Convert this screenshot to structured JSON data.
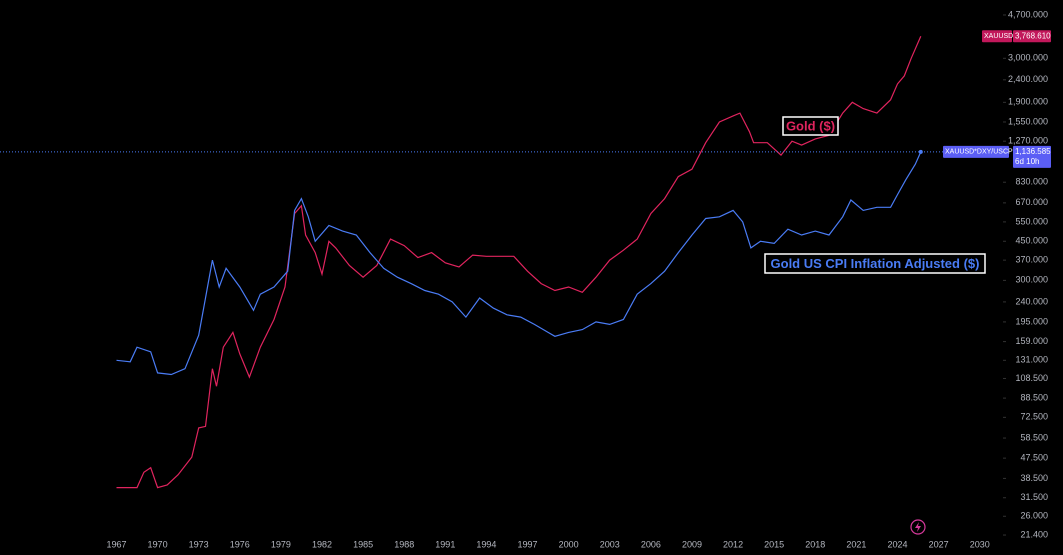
{
  "chart_data": {
    "type": "line",
    "log_scale": true,
    "background": "#000000",
    "xlim": [
      1958.5,
      2031.7
    ],
    "ylim": [
      19.3,
      5490
    ],
    "xticks": [
      1967,
      1970,
      1973,
      1976,
      1979,
      1982,
      1985,
      1988,
      1991,
      1994,
      1997,
      2000,
      2003,
      2006,
      2009,
      2012,
      2015,
      2018,
      2021,
      2024,
      2027,
      2030
    ],
    "yticks": [
      {
        "value": 4700,
        "label": "4,700.000"
      },
      {
        "value": 3000,
        "label": "3,000.000"
      },
      {
        "value": 2400,
        "label": "2,400.000"
      },
      {
        "value": 1900,
        "label": "1,900.000"
      },
      {
        "value": 1550,
        "label": "1,550.000"
      },
      {
        "value": 1270,
        "label": "1,270.000"
      },
      {
        "value": 830,
        "label": "830.000"
      },
      {
        "value": 670,
        "label": "670.000"
      },
      {
        "value": 550,
        "label": "550.000"
      },
      {
        "value": 450,
        "label": "450.000"
      },
      {
        "value": 370,
        "label": "370.000"
      },
      {
        "value": 300,
        "label": "300.000"
      },
      {
        "value": 240,
        "label": "240.000"
      },
      {
        "value": 195,
        "label": "195.000"
      },
      {
        "value": 159,
        "label": "159.000"
      },
      {
        "value": 131,
        "label": "131.000"
      },
      {
        "value": 108.5,
        "label": "108.500"
      },
      {
        "value": 88.5,
        "label": "88.500"
      },
      {
        "value": 72.5,
        "label": "72.500"
      },
      {
        "value": 58.5,
        "label": "58.500"
      },
      {
        "value": 47.5,
        "label": "47.500"
      },
      {
        "value": 38.5,
        "label": "38.500"
      },
      {
        "value": 31.5,
        "label": "31.500"
      },
      {
        "value": 26,
        "label": "26.000"
      },
      {
        "value": 21.4,
        "label": "21.400"
      }
    ],
    "series": [
      {
        "name": "XAUUSD",
        "color": "#e0245e",
        "tag_color": "#c2185b",
        "last_value_label": "3,768.610",
        "x": [
          1967.0,
          1968.5,
          1969.0,
          1969.5,
          1970.0,
          1970.7,
          1971.5,
          1972.5,
          1973.0,
          1973.5,
          1974.0,
          1974.3,
          1974.8,
          1975.5,
          1976.0,
          1976.7,
          1977.5,
          1978.5,
          1979.3,
          1980.0,
          1980.5,
          1980.8,
          1981.5,
          1982.0,
          1982.5,
          1983.0,
          1984.0,
          1985.0,
          1986.0,
          1987.0,
          1988.0,
          1989.0,
          1990.0,
          1991.0,
          1992.0,
          1993.0,
          1994.0,
          1995.0,
          1996.0,
          1997.0,
          1998.0,
          1999.0,
          2000.0,
          2001.0,
          2002.0,
          2003.0,
          2004.0,
          2005.0,
          2006.0,
          2007.0,
          2008.0,
          2009.0,
          2010.0,
          2011.0,
          2012.0,
          2012.5,
          2013.2,
          2013.5,
          2014.5,
          2015.5,
          2016.3,
          2017.0,
          2018.0,
          2019.0,
          2020.0,
          2020.7,
          2021.5,
          2022.5,
          2023.5,
          2024.0,
          2024.5,
          2025.0,
          2025.7
        ],
        "values": [
          35,
          35,
          41,
          43,
          35,
          36,
          40,
          48,
          65,
          66,
          120,
          100,
          150,
          175,
          140,
          110,
          150,
          200,
          280,
          600,
          650,
          480,
          400,
          320,
          450,
          420,
          350,
          310,
          350,
          460,
          430,
          380,
          400,
          360,
          345,
          390,
          385,
          385,
          385,
          330,
          290,
          270,
          280,
          265,
          310,
          370,
          410,
          460,
          600,
          700,
          880,
          950,
          1250,
          1550,
          1650,
          1700,
          1400,
          1250,
          1250,
          1100,
          1270,
          1220,
          1300,
          1350,
          1700,
          1900,
          1780,
          1700,
          1950,
          2300,
          2500,
          3000,
          3768.61
        ]
      },
      {
        "name": "XAUUSD*DXY/USCPI",
        "color": "#4a7cf5",
        "tag_color": "#5b5ef5",
        "last_value_label": "1,136.585",
        "countdown": "6d 10h",
        "x": [
          1967.0,
          1968.0,
          1968.5,
          1969.5,
          1970.0,
          1971.0,
          1972.0,
          1973.0,
          1973.5,
          1974.0,
          1974.5,
          1975.0,
          1976.0,
          1977.0,
          1977.5,
          1978.5,
          1979.5,
          1980.0,
          1980.5,
          1981.0,
          1981.5,
          1982.5,
          1983.5,
          1984.5,
          1985.5,
          1986.5,
          1987.5,
          1988.5,
          1989.5,
          1990.5,
          1991.5,
          1992.5,
          1993.5,
          1994.5,
          1995.5,
          1996.5,
          1997.5,
          1998.5,
          1999.0,
          2000.0,
          2001.0,
          2002.0,
          2003.0,
          2004.0,
          2005.0,
          2006.0,
          2007.0,
          2008.0,
          2009.0,
          2010.0,
          2011.0,
          2012.0,
          2012.7,
          2013.3,
          2014.0,
          2015.0,
          2016.0,
          2017.0,
          2018.0,
          2019.0,
          2020.0,
          2020.6,
          2021.5,
          2022.5,
          2023.5,
          2024.0,
          2024.6,
          2025.3,
          2025.7
        ],
        "values": [
          131,
          129,
          150,
          143,
          115,
          113,
          120,
          170,
          250,
          370,
          280,
          340,
          280,
          220,
          260,
          280,
          330,
          620,
          700,
          580,
          450,
          530,
          500,
          480,
          400,
          340,
          310,
          290,
          270,
          260,
          240,
          205,
          250,
          225,
          210,
          205,
          190,
          175,
          168,
          175,
          180,
          195,
          190,
          200,
          260,
          290,
          330,
          400,
          480,
          570,
          580,
          620,
          550,
          420,
          450,
          440,
          510,
          480,
          500,
          480,
          580,
          690,
          620,
          640,
          640,
          730,
          850,
          1000,
          1136.585
        ]
      }
    ],
    "annotations": [
      {
        "text": "Gold ($)",
        "color": "#e0245e"
      },
      {
        "text": "Gold US CPI Inflation Adjusted ($)",
        "color": "#4a7cf5"
      }
    ]
  }
}
